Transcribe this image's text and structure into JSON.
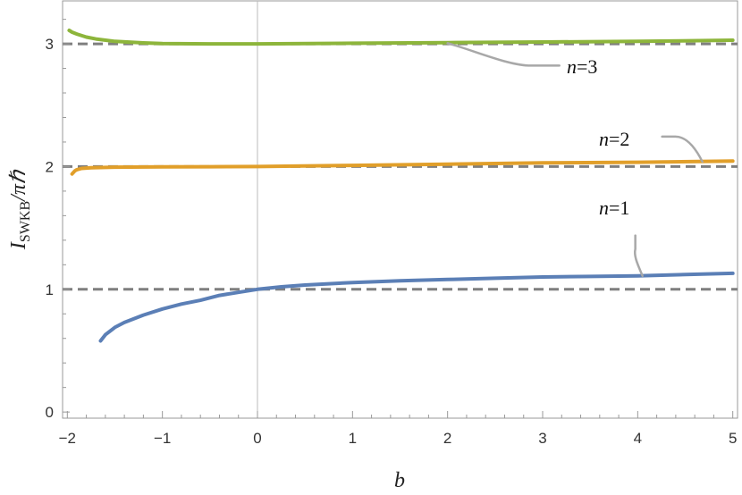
{
  "chart_data": {
    "type": "line",
    "title": "",
    "xlabel": "b",
    "ylabel": "I_SWKB/πℏ",
    "ylabel_main": "I",
    "ylabel_sub": "SWKB",
    "ylabel_rest": "/πℏ",
    "xlim": [
      -2.05,
      5.05
    ],
    "ylim": [
      -0.05,
      3.35
    ],
    "xticks": [
      -2,
      -1,
      0,
      1,
      2,
      3,
      4,
      5
    ],
    "xtick_labels": [
      "−2",
      "−1",
      "0",
      "1",
      "2",
      "3",
      "4",
      "5"
    ],
    "yticks": [
      0,
      1,
      2,
      3
    ],
    "ytick_labels": [
      "0",
      "1",
      "2",
      "3"
    ],
    "grid": false,
    "reference_lines": {
      "y": [
        1,
        2,
        3
      ],
      "style": "dashed",
      "color": "#7f7f7f"
    },
    "colors": {
      "n1": "#5b7fb6",
      "n2": "#e19f2a",
      "n3": "#8db53b",
      "reference": "#7f7f7f",
      "callout": "#a8a8a8"
    },
    "series": [
      {
        "name": "n=1",
        "label_n": "n",
        "label_val": "=1",
        "color": "#5b7fb6",
        "x": [
          -1.65,
          -1.6,
          -1.5,
          -1.4,
          -1.2,
          -1.0,
          -0.8,
          -0.6,
          -0.4,
          -0.2,
          0,
          0.25,
          0.5,
          1.0,
          1.5,
          2.0,
          2.5,
          3.0,
          3.5,
          4.0,
          4.5,
          5.0
        ],
        "y": [
          0.58,
          0.63,
          0.69,
          0.73,
          0.79,
          0.84,
          0.88,
          0.91,
          0.95,
          0.975,
          1.0,
          1.02,
          1.035,
          1.055,
          1.07,
          1.08,
          1.09,
          1.1,
          1.105,
          1.11,
          1.12,
          1.13
        ]
      },
      {
        "name": "n=2",
        "label_n": "n",
        "label_val": "=2",
        "color": "#e19f2a",
        "x": [
          -1.95,
          -1.92,
          -1.9,
          -1.85,
          -1.75,
          -1.5,
          -1.0,
          -0.5,
          0,
          1.0,
          2.0,
          3.0,
          4.0,
          5.0
        ],
        "y": [
          1.94,
          1.965,
          1.975,
          1.985,
          1.99,
          1.995,
          1.997,
          1.999,
          2.0,
          2.01,
          2.02,
          2.03,
          2.035,
          2.045
        ]
      },
      {
        "name": "n=3",
        "label_n": "n",
        "label_val": "=3",
        "color": "#8db53b",
        "x": [
          -1.98,
          -1.95,
          -1.9,
          -1.8,
          -1.7,
          -1.5,
          -1.2,
          -1.0,
          -0.5,
          0,
          1.0,
          2.0,
          3.0,
          4.0,
          5.0
        ],
        "y": [
          3.11,
          3.095,
          3.08,
          3.055,
          3.04,
          3.02,
          3.008,
          3.003,
          3.0,
          3.0,
          3.005,
          3.01,
          3.015,
          3.02,
          3.03
        ]
      }
    ]
  }
}
